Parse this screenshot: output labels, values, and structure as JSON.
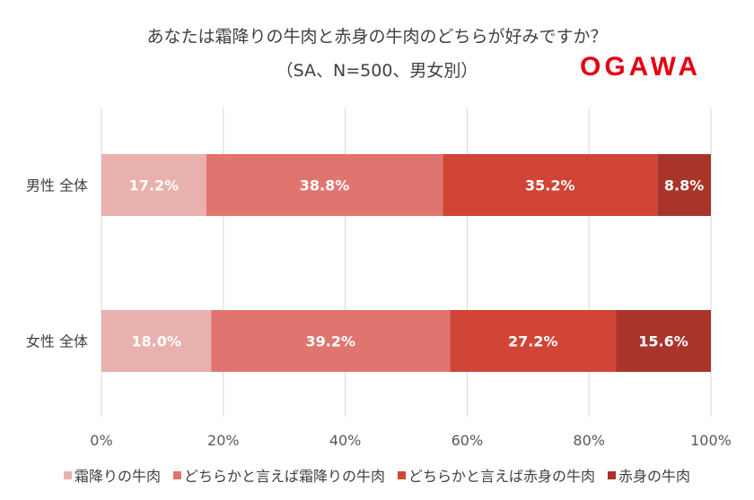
{
  "chart_data": {
    "type": "bar",
    "orientation": "horizontal-stacked-100",
    "title": "あなたは霜降りの牛肉と赤身の牛肉のどちらが好みですか？",
    "subtitle": "（SA、N=500、男女別）",
    "categories": [
      "男性 全体",
      "女性 全体"
    ],
    "series": [
      {
        "name": "霜降りの牛肉",
        "color": "#e8b1ae",
        "values": [
          17.2,
          18.0
        ],
        "labels": [
          "17.2%",
          "18.0%"
        ]
      },
      {
        "name": "どちらかと言えば霜降りの牛肉",
        "color": "#e07570",
        "values": [
          38.8,
          39.2
        ],
        "labels": [
          "38.8%",
          "39.2%"
        ]
      },
      {
        "name": "どちらかと言えば赤身の牛肉",
        "color": "#d04535",
        "values": [
          35.2,
          27.2
        ],
        "labels": [
          "35.2%",
          "27.2%"
        ]
      },
      {
        "name": "赤身の牛肉",
        "color": "#a8342a",
        "values": [
          8.8,
          15.6
        ],
        "labels": [
          "8.8%",
          "15.6%"
        ]
      }
    ],
    "xlim": [
      0,
      100
    ],
    "xticks": [
      "0%",
      "20%",
      "40%",
      "60%",
      "80%",
      "100%"
    ],
    "grid": true,
    "legend": "bottom"
  },
  "logo": "OGAWA"
}
